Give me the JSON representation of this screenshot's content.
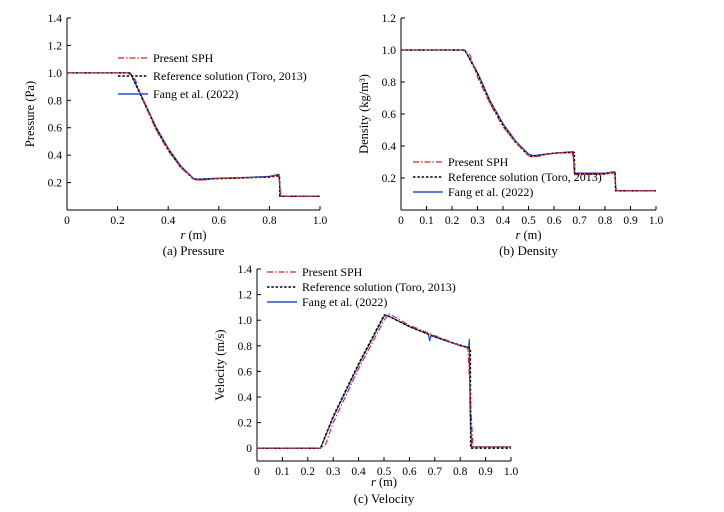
{
  "legend_labels": {
    "sph": "Present SPH",
    "ref": "Reference solution (Toro, 2013)",
    "fang": "Fang et al. (2022)"
  },
  "colors": {
    "sph": "#e02020",
    "ref": "#000000",
    "fang": "#2a4fc4",
    "axis": "#000000"
  },
  "chart_data": [
    {
      "id": "pressure",
      "type": "line",
      "caption": "(a) Pressure",
      "xlabel_main": "r",
      "xlabel_unit": " (m)",
      "ylabel": "Pressure (Pa)",
      "xlim": [
        0,
        1.0
      ],
      "ylim": [
        0,
        1.4
      ],
      "xticks": [
        0,
        0.2,
        0.4,
        0.6,
        0.8,
        1.0
      ],
      "xtick_labels": [
        "0",
        "0.2",
        "0.4",
        "0.6",
        "0.8",
        "1.0"
      ],
      "yticks": [
        0.2,
        0.4,
        0.6,
        0.8,
        1.0,
        1.2,
        1.4
      ],
      "ytick_labels": [
        "0.2",
        "0.4",
        "0.6",
        "0.8",
        "1.0",
        "1.2",
        "1.4"
      ],
      "series": [
        {
          "name": "ref",
          "x": [
            0,
            0.25,
            0.3,
            0.35,
            0.4,
            0.45,
            0.5,
            0.51,
            0.6,
            0.7,
            0.8,
            0.84,
            0.841,
            1.0
          ],
          "values": [
            1.0,
            1.0,
            0.8,
            0.6,
            0.44,
            0.31,
            0.225,
            0.222,
            0.228,
            0.234,
            0.24,
            0.25,
            0.1,
            0.1
          ]
        },
        {
          "name": "sph",
          "x": [
            0,
            0.24,
            0.27,
            0.3,
            0.35,
            0.4,
            0.45,
            0.5,
            0.52,
            0.6,
            0.7,
            0.8,
            0.835,
            0.84,
            0.845,
            0.9,
            1.0
          ],
          "values": [
            1.0,
            1.0,
            0.95,
            0.8,
            0.59,
            0.43,
            0.31,
            0.225,
            0.215,
            0.23,
            0.235,
            0.24,
            0.26,
            0.2,
            0.1,
            0.1,
            0.1
          ]
        },
        {
          "name": "fang",
          "x": [
            0,
            0.25,
            0.3,
            0.35,
            0.4,
            0.45,
            0.5,
            0.52,
            0.6,
            0.7,
            0.8,
            0.838,
            0.841,
            0.843,
            1.0
          ],
          "values": [
            1.0,
            1.0,
            0.81,
            0.61,
            0.45,
            0.32,
            0.23,
            0.225,
            0.232,
            0.237,
            0.245,
            0.26,
            0.18,
            0.1,
            0.1
          ]
        }
      ]
    },
    {
      "id": "density",
      "type": "line",
      "caption": "(b) Density",
      "xlabel_main": "r",
      "xlabel_unit": " (m)",
      "ylabel": "Density (kg/m³)",
      "xlim": [
        0,
        1.0
      ],
      "ylim": [
        0,
        1.2
      ],
      "xticks": [
        0,
        0.1,
        0.2,
        0.3,
        0.4,
        0.5,
        0.6,
        0.7,
        0.8,
        0.9,
        1.0
      ],
      "xtick_labels": [
        "0",
        "0.1",
        "0.2",
        "0.3",
        "0.4",
        "0.5",
        "0.6",
        "0.7",
        "0.8",
        "0.9",
        "1.0"
      ],
      "yticks": [
        0.2,
        0.4,
        0.6,
        0.8,
        1.0,
        1.2
      ],
      "ytick_labels": [
        "0.2",
        "0.4",
        "0.6",
        "0.8",
        "1.0",
        "1.2"
      ],
      "series": [
        {
          "name": "ref",
          "x": [
            0,
            0.25,
            0.3,
            0.35,
            0.4,
            0.45,
            0.5,
            0.51,
            0.6,
            0.68,
            0.681,
            0.8,
            0.84,
            0.841,
            1.0
          ],
          "values": [
            1.0,
            1.0,
            0.85,
            0.67,
            0.53,
            0.42,
            0.34,
            0.335,
            0.355,
            0.36,
            0.225,
            0.225,
            0.235,
            0.12,
            0.12
          ]
        },
        {
          "name": "sph",
          "x": [
            0,
            0.24,
            0.27,
            0.3,
            0.35,
            0.4,
            0.45,
            0.5,
            0.52,
            0.6,
            0.67,
            0.675,
            0.685,
            0.8,
            0.835,
            0.845,
            1.0
          ],
          "values": [
            1.0,
            1.0,
            0.97,
            0.83,
            0.66,
            0.52,
            0.42,
            0.34,
            0.33,
            0.355,
            0.36,
            0.33,
            0.22,
            0.225,
            0.24,
            0.12,
            0.12
          ]
        },
        {
          "name": "fang",
          "x": [
            0,
            0.25,
            0.3,
            0.35,
            0.4,
            0.45,
            0.5,
            0.52,
            0.6,
            0.675,
            0.68,
            0.8,
            0.838,
            0.843,
            1.0
          ],
          "values": [
            1.0,
            1.0,
            0.86,
            0.68,
            0.54,
            0.43,
            0.35,
            0.34,
            0.355,
            0.365,
            0.23,
            0.23,
            0.24,
            0.12,
            0.12
          ]
        }
      ]
    },
    {
      "id": "velocity",
      "type": "line",
      "caption": "(c) Velocity",
      "xlabel_main": "r",
      "xlabel_unit": " (m)",
      "ylabel": "Velocity (m/s)",
      "xlim": [
        0,
        1.0
      ],
      "ylim": [
        -0.1,
        1.4
      ],
      "xticks": [
        0,
        0.1,
        0.2,
        0.3,
        0.4,
        0.5,
        0.6,
        0.7,
        0.8,
        0.9,
        1.0
      ],
      "xtick_labels": [
        "0",
        "0.1",
        "0.2",
        "0.3",
        "0.4",
        "0.5",
        "0.6",
        "0.7",
        "0.8",
        "0.9",
        "1.0"
      ],
      "yticks": [
        0,
        0.2,
        0.4,
        0.6,
        0.8,
        1.0,
        1.2,
        1.4
      ],
      "ytick_labels": [
        "0",
        "0.2",
        "0.4",
        "0.6",
        "0.8",
        "1.0",
        "1.2",
        "1.4"
      ],
      "series": [
        {
          "name": "ref",
          "x": [
            0,
            0.25,
            0.3,
            0.4,
            0.5,
            0.51,
            0.6,
            0.7,
            0.84,
            0.841,
            1.0
          ],
          "values": [
            0,
            0,
            0.25,
            0.66,
            1.04,
            1.04,
            0.95,
            0.87,
            0.78,
            0,
            0
          ]
        },
        {
          "name": "sph",
          "x": [
            0,
            0.25,
            0.27,
            0.3,
            0.4,
            0.5,
            0.52,
            0.6,
            0.7,
            0.83,
            0.84,
            0.85,
            1.0
          ],
          "values": [
            0,
            0,
            0.03,
            0.2,
            0.62,
            1.0,
            1.05,
            0.96,
            0.88,
            0.78,
            0.4,
            0.01,
            0.01
          ]
        },
        {
          "name": "fang",
          "x": [
            0,
            0.25,
            0.3,
            0.4,
            0.5,
            0.51,
            0.6,
            0.675,
            0.68,
            0.685,
            0.8,
            0.833,
            0.836,
            0.839,
            0.845,
            1.0
          ],
          "values": [
            0,
            0,
            0.24,
            0.65,
            1.03,
            1.04,
            0.95,
            0.89,
            0.84,
            0.88,
            0.8,
            0.79,
            0.85,
            0.3,
            0.01,
            0.01
          ]
        }
      ]
    }
  ]
}
